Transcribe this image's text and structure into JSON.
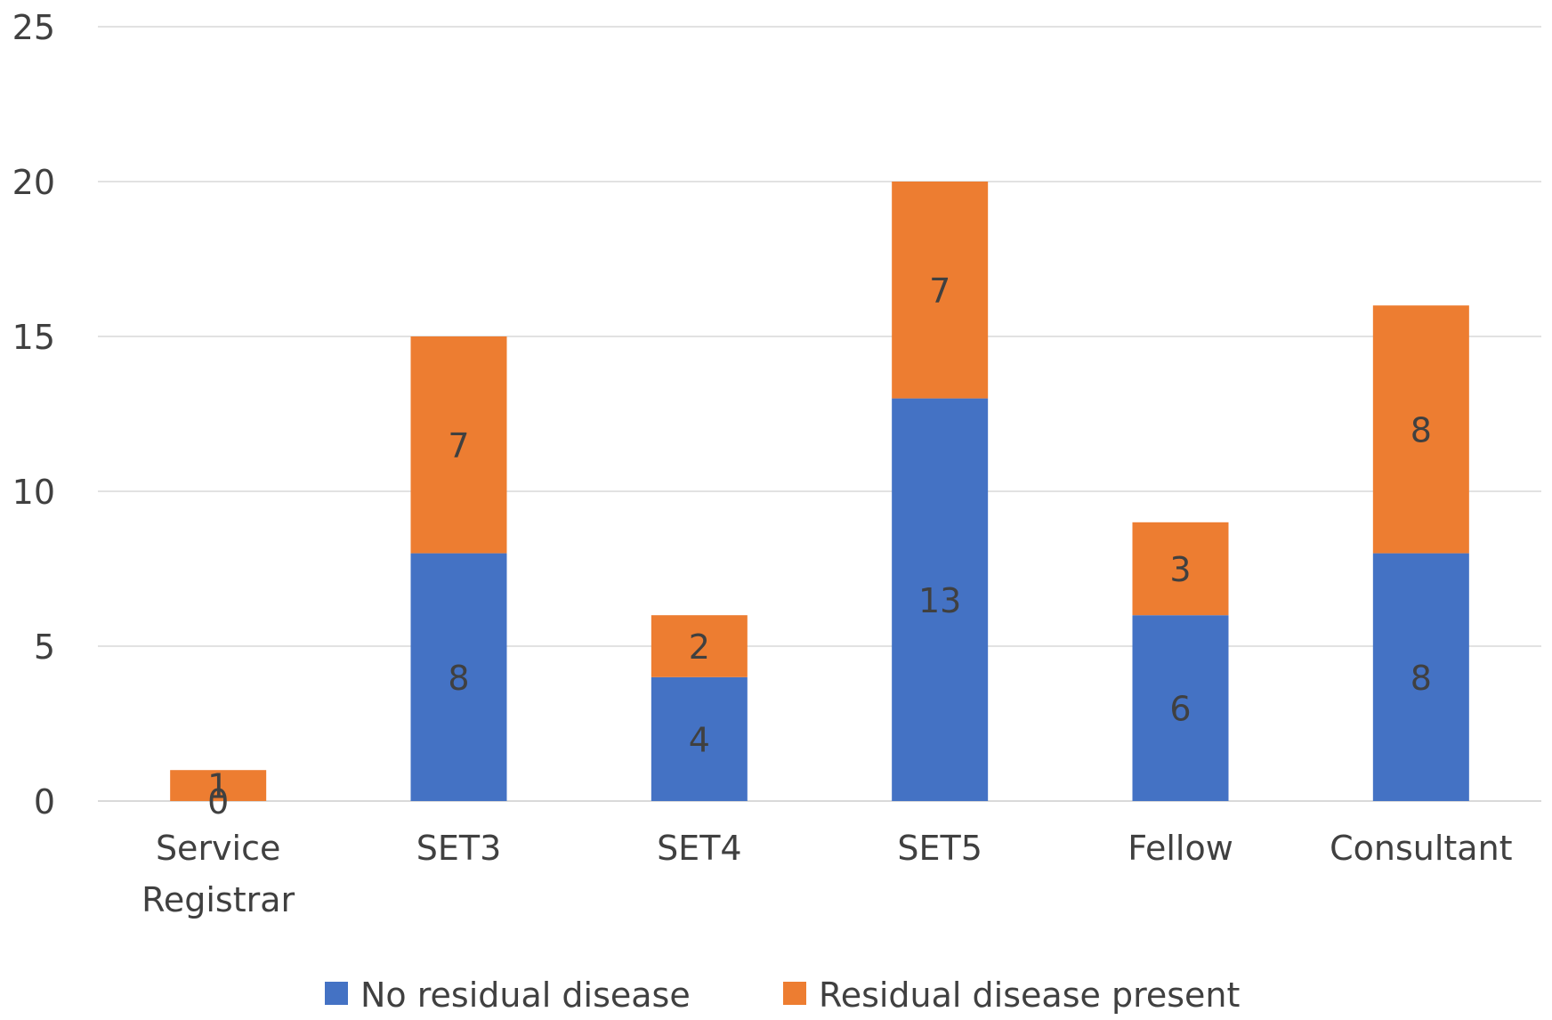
{
  "chart_data": {
    "type": "bar",
    "stacked": true,
    "categories": [
      [
        "Service",
        "Registrar"
      ],
      [
        "SET3"
      ],
      [
        "SET4"
      ],
      [
        "SET5"
      ],
      [
        "Fellow"
      ],
      [
        "Consultant"
      ]
    ],
    "series": [
      {
        "name": "No residual disease",
        "color": "#4472c4",
        "values": [
          0,
          8,
          4,
          13,
          6,
          8
        ]
      },
      {
        "name": "Residual disease present",
        "color": "#ed7d31",
        "values": [
          1,
          7,
          2,
          7,
          3,
          8
        ]
      }
    ],
    "ylim": [
      0,
      25
    ],
    "yticks": [
      0,
      5,
      10,
      15,
      20,
      25
    ],
    "grid": true,
    "legend": "bottom",
    "data_labels": true
  }
}
